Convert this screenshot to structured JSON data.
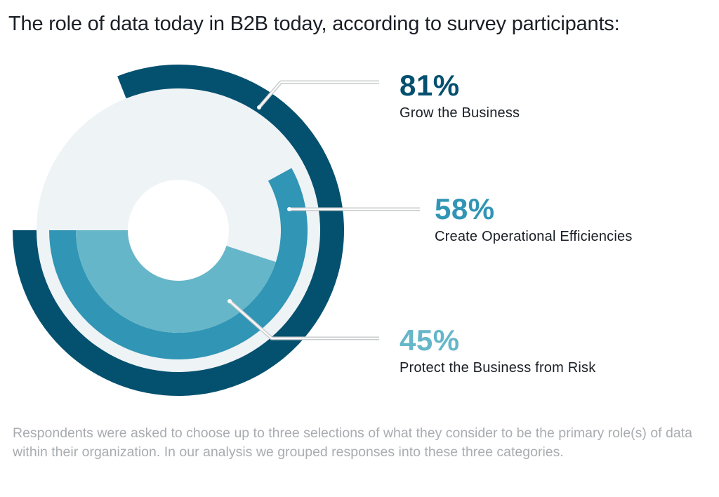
{
  "title": "The role of data today in B2B today, according to survey participants:",
  "colors": {
    "background_disc": "#eef3f6",
    "line": "#c9ccce"
  },
  "chart_data": {
    "type": "radial-bar",
    "max": 100,
    "series": [
      {
        "value": 81,
        "label": "81%",
        "name": "Grow the Business",
        "color": "#04506f"
      },
      {
        "value": 58,
        "label": "58%",
        "name": "Create Operational Efficiencies",
        "color": "#3195b5"
      },
      {
        "value": 45,
        "label": "45%",
        "name": "Protect the Business from Risk",
        "color": "#66b6c9"
      }
    ]
  },
  "footnote": "Respondents were asked to choose up to three selections of what they consider to be the primary role(s) of data within their organization. In our analysis we grouped responses into these three categories."
}
